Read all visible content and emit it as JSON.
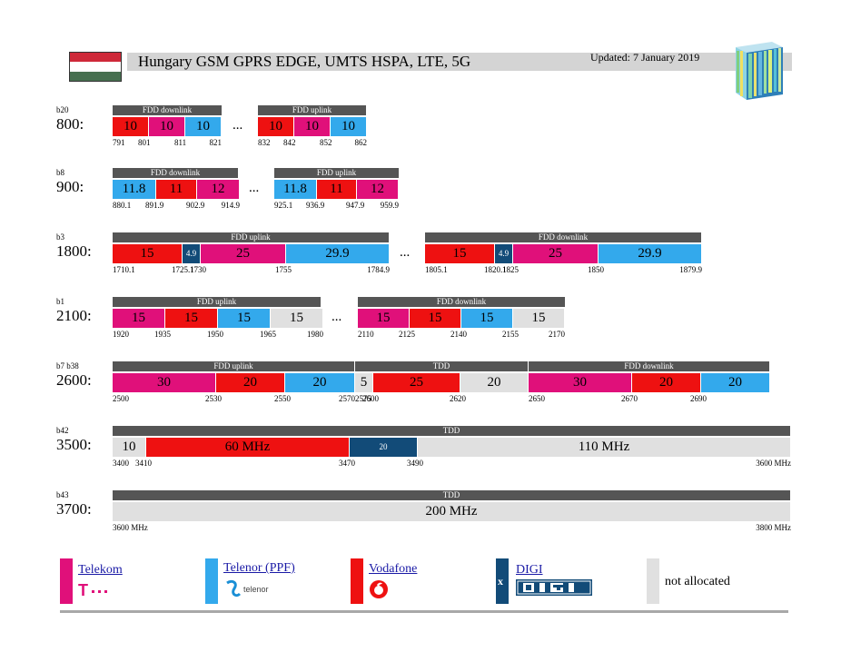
{
  "title": "Hungary GSM GPRS EDGE, UMTS HSPA, LTE, 5G",
  "updated": "Updated: 7 January 2019",
  "colors": {
    "telekom": "#e0107a",
    "telenor": "#33a9ec",
    "vodafone": "#ee1111",
    "digi": "#124b78",
    "unallocated": "#e0e0e0",
    "header": "#555555"
  },
  "legend": [
    {
      "name": "Telekom",
      "color": "telekom",
      "link": true,
      "logo": "telekom-logo"
    },
    {
      "name": "Telenor (PPF)",
      "color": "telenor",
      "link": true,
      "logo": "telenor-logo"
    },
    {
      "name": "Vodafone",
      "color": "vodafone",
      "link": true,
      "logo": "vodafone-logo"
    },
    {
      "name": "DIGI",
      "color": "digi",
      "link": true,
      "logo": "digi-logo",
      "marker": "x"
    },
    {
      "name": "not allocated",
      "color": "unallocated",
      "link": false
    }
  ],
  "bands": [
    {
      "code": "b20",
      "name": "800:",
      "segments": [
        {
          "header": "FDD downlink",
          "blocks": [
            {
              "label": "10",
              "op": "vodafone"
            },
            {
              "label": "10",
              "op": "telekom"
            },
            {
              "label": "10",
              "op": "telenor"
            }
          ],
          "ticks": [
            "791",
            "801",
            "811",
            "821"
          ]
        },
        {
          "header": "FDD uplink",
          "blocks": [
            {
              "label": "10",
              "op": "vodafone"
            },
            {
              "label": "10",
              "op": "telekom"
            },
            {
              "label": "10",
              "op": "telenor"
            }
          ],
          "ticks": [
            "832",
            "842",
            "852",
            "862"
          ]
        }
      ],
      "separator": "..."
    },
    {
      "code": "b8",
      "name": "900:",
      "segments": [
        {
          "header": "FDD downlink",
          "blocks": [
            {
              "label": "11.8",
              "op": "telenor"
            },
            {
              "label": "11",
              "op": "vodafone"
            },
            {
              "label": "12",
              "op": "telekom"
            }
          ],
          "ticks": [
            "880.1",
            "891.9",
            "902.9",
            "914.9"
          ]
        },
        {
          "header": "FDD uplink",
          "blocks": [
            {
              "label": "11.8",
              "op": "telenor"
            },
            {
              "label": "11",
              "op": "vodafone"
            },
            {
              "label": "12",
              "op": "telekom"
            }
          ],
          "ticks": [
            "925.1",
            "936.9",
            "947.9",
            "959.9"
          ]
        }
      ],
      "separator": "..."
    },
    {
      "code": "b3",
      "name": "1800:",
      "segments": [
        {
          "header": "FDD uplink",
          "blocks": [
            {
              "label": "15",
              "op": "vodafone"
            },
            {
              "label": "4.9",
              "op": "digi"
            },
            {
              "label": "25",
              "op": "telekom"
            },
            {
              "label": "29.9",
              "op": "telenor"
            }
          ],
          "ticks": [
            "1710.1",
            "1725.1",
            "1730",
            "1755",
            "1784.9"
          ]
        },
        {
          "header": "FDD downlink",
          "blocks": [
            {
              "label": "15",
              "op": "vodafone"
            },
            {
              "label": "4.9",
              "op": "digi"
            },
            {
              "label": "25",
              "op": "telekom"
            },
            {
              "label": "29.9",
              "op": "telenor"
            }
          ],
          "ticks": [
            "1805.1",
            "1820.1",
            "1825",
            "1850",
            "1879.9"
          ]
        }
      ],
      "separator": "..."
    },
    {
      "code": "b1",
      "name": "2100:",
      "segments": [
        {
          "header": "FDD uplink",
          "blocks": [
            {
              "label": "15",
              "op": "telekom"
            },
            {
              "label": "15",
              "op": "vodafone"
            },
            {
              "label": "15",
              "op": "telenor"
            },
            {
              "label": "15",
              "op": "unallocated"
            }
          ],
          "ticks": [
            "1920",
            "1935",
            "1950",
            "1965",
            "1980"
          ]
        },
        {
          "header": "FDD downlink",
          "blocks": [
            {
              "label": "15",
              "op": "telekom"
            },
            {
              "label": "15",
              "op": "vodafone"
            },
            {
              "label": "15",
              "op": "telenor"
            },
            {
              "label": "15",
              "op": "unallocated"
            }
          ],
          "ticks": [
            "2110",
            "2125",
            "2140",
            "2155",
            "2170"
          ]
        }
      ],
      "separator": "..."
    },
    {
      "code": "b7 b38",
      "name": "2600:",
      "segments": [
        {
          "header": "FDD uplink",
          "blocks": [
            {
              "label": "30",
              "op": "telekom"
            },
            {
              "label": "20",
              "op": "vodafone"
            },
            {
              "label": "20",
              "op": "telenor"
            }
          ],
          "ticks": [
            "2500",
            "2530",
            "2550",
            "2570"
          ]
        },
        {
          "header": "TDD",
          "blocks": [
            {
              "label": "5",
              "op": "unallocated"
            },
            {
              "label": "25",
              "op": "vodafone"
            },
            {
              "label": "20",
              "op": "unallocated"
            }
          ],
          "ticks": [
            "2575",
            "2600",
            "2620"
          ]
        },
        {
          "header": "FDD downlink",
          "blocks": [
            {
              "label": "30",
              "op": "telekom"
            },
            {
              "label": "20",
              "op": "vodafone"
            },
            {
              "label": "20",
              "op": "telenor"
            }
          ],
          "ticks": [
            "2650",
            "2670",
            "2690"
          ]
        }
      ],
      "separator": ""
    },
    {
      "code": "b42",
      "name": "3500:",
      "segments": [
        {
          "header": "TDD",
          "blocks": [
            {
              "label": "10",
              "op": "unallocated"
            },
            {
              "label": "60 MHz",
              "op": "vodafone"
            },
            {
              "label": "20",
              "op": "digi"
            },
            {
              "label": "110 MHz",
              "op": "unallocated"
            }
          ],
          "ticks": [
            "3400",
            "3410",
            "3470",
            "3490",
            "3600 MHz"
          ]
        }
      ],
      "separator": ""
    },
    {
      "code": "b43",
      "name": "3700:",
      "segments": [
        {
          "header": "TDD",
          "blocks": [
            {
              "label": "200 MHz",
              "op": "unallocated"
            }
          ],
          "ticks": [
            "3600 MHz",
            "3800 MHz"
          ]
        }
      ],
      "separator": ""
    }
  ]
}
